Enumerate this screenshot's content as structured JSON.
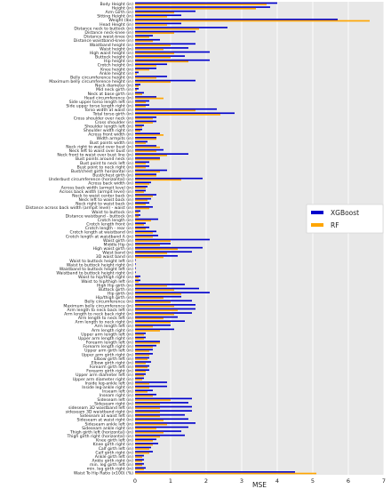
{
  "chart_data": {
    "type": "bar",
    "orientation": "horizontal",
    "xlabel": "MSE",
    "ylabel": "",
    "title": "",
    "xlim": [
      0,
      7
    ],
    "xticks": [
      0,
      1,
      2,
      3,
      4,
      5,
      6,
      7
    ],
    "grid": true,
    "legend_position": "right",
    "colors": {
      "XGBoost": "#0000cc",
      "RF": "#ffa500",
      "background": "#e8e8e8"
    },
    "categories": [
      "Body Height (in)",
      "Height (in)",
      "Arm Girth (in)",
      "Sitting Height (in)",
      "Weight (lbs)",
      "Head Height (in)",
      "Distance neck to buttock (in)",
      "Distance neck-knee (in)",
      "Distance waist-knee (in)",
      "Distance waistband-knee (in)",
      "Waistband height (in)",
      "Waist height (in)",
      "High waist height (in)",
      "Buttock height (in)",
      "Hip height (in)",
      "Crotch height (in)",
      "Knee height (in)",
      "Ankle height (in)",
      "Belly circumference height (in)",
      "Maximum belly circumference height (in)",
      "Neck diameter (in)",
      "Mid neck girth (in)",
      "Neck at base girth (in)",
      "Head circumference (in)",
      "Side upper torso length left (in)",
      "Side upper torso length right (in)",
      "Torso width at waist (in)",
      "Total torso girth (in)",
      "Cross shoulder over neck (in)",
      "Cross shoulder (in)",
      "Shoulder length left (in)",
      "Shoulder width right (in)",
      "Across front width (in)",
      "Width armpits (in)",
      "Bust points width (in)",
      "Neck right to waist over bust (in)",
      "Neck left to waist over bust (in)",
      "Neck front to waist over bust line (in)",
      "Bust points around neck (in)",
      "Bust point to neck left (in)",
      "Bust point to neck right (in)",
      "Bust/chest girth horizontal (in)",
      "Bust/chest girth (in)",
      "Underbust circumference (horizontal) (in)",
      "Across back width (in)",
      "Across back width (armpit level (in)",
      "Across back width (armpit level) (in)",
      "Neck to waist center back (in)",
      "Neck left to waist back (in)",
      "Neck right to waist back (in)",
      "Distance across back width (armpit level) - waist (in)",
      "Waist to buttock (in)",
      "Distance waistband - buttock (in)",
      "Crotch length (in)",
      "Crotch length front (in)",
      "Crotch length - rear (in)",
      "Crotch length at waistband (in)",
      "Crotch length at waistband A (in)",
      "Waist girth (in)",
      "Middle Hip (in)",
      "High waist girth (in)",
      "Waist band (in)",
      "3D waist band (in)",
      "Waist to buttock height left (in)",
      "Waist to buttock height right (in)",
      "Waistband to buttock height left (in)",
      "Waistband to buttock height right (in)",
      "Waist to hip/thigh right (in)",
      "Waist to hip/thigh left (in)",
      "High Hip girth (in)",
      "Buttock girth (in)",
      "Hip girth (in)",
      "Hip/thigh girth (in)",
      "Belly circumference (in)",
      "Maximum belly circumference (in)",
      "Arm length to neck back left (in)",
      "Arm length to neck back right (in)",
      "Arm length to neck left (in)",
      "Arm length to neck right (in)",
      "Arm length left (in)",
      "Arm length right (in)",
      "Upper arm length left (in)",
      "Upper arm length right (in)",
      "Forearm length left (in)",
      "Forearm length right (in)",
      "Upper arm girth left (in)",
      "Upper arm girth right (in)",
      "Elbow girth left (in)",
      "Elbow girth right (in)",
      "Forearm girth left (in)",
      "Forearm girth right (in)",
      "Upper arm diameter left (in)",
      "Upper arm diameter right (in)",
      "Inside leg-ankle left (in)",
      "Inside leg-ankle right (in)",
      "Inseam left (in)",
      "Inseam right (in)",
      "Sideseam left (in)",
      "Sideseam right (in)",
      "sideseam 3D waistband left (in)",
      "sideseam 3D waistband right (in)",
      "Sideseam at waist left (in)",
      "Sideseam at waist right (in)",
      "Sideseam ankle left (in)",
      "Sideseam ankle right (in)",
      "Thigh girth left (horizontal) (in)",
      "Thigh girth right (horizontal) (in)",
      "Knee girth left (in)",
      "Knee girth right (in)",
      "Calf girth left (in)",
      "Calf girth right (in)",
      "Ankle girth left (in)",
      "Ankle girth right (in)",
      "min. leg girth left (in)",
      "min. leg girth right (in)",
      "Waist To Hip Ratio (x100) (%)"
    ],
    "series": [
      {
        "name": "XGBoost",
        "values": [
          4.0,
          3.8,
          1.7,
          1.3,
          5.7,
          1.3,
          2.6,
          1.7,
          0.5,
          0.7,
          1.7,
          1.5,
          2.1,
          1.4,
          2.1,
          0.9,
          0.6,
          0.1,
          0.9,
          1.7,
          0.15,
          0.1,
          0.25,
          0.6,
          0.4,
          0.4,
          2.3,
          2.8,
          0.6,
          0.6,
          0.25,
          0.2,
          0.7,
          0.6,
          0.35,
          0.6,
          0.8,
          1.5,
          0.7,
          0.4,
          0.4,
          0.9,
          0.6,
          1.9,
          0.45,
          0.35,
          0.3,
          0.6,
          0.45,
          0.4,
          0.5,
          0.15,
          0.15,
          0.65,
          0.3,
          0.4,
          0.6,
          0.65,
          2.1,
          1.0,
          1.9,
          1.6,
          1.2,
          0.02,
          0.02,
          0.02,
          0.02,
          0.15,
          0.15,
          1.4,
          1.8,
          2.1,
          1.3,
          1.6,
          1.7,
          1.7,
          1.6,
          1.2,
          1.4,
          1.0,
          1.1,
          0.3,
          0.3,
          0.7,
          0.6,
          0.5,
          0.5,
          0.4,
          0.45,
          0.4,
          0.4,
          0.3,
          0.25,
          0.9,
          0.9,
          0.5,
          0.6,
          1.6,
          1.5,
          1.6,
          1.6,
          1.4,
          1.5,
          1.7,
          1.5,
          1.3,
          1.4,
          0.6,
          0.65,
          0.45,
          0.5,
          0.25,
          0.25,
          0.25,
          0.3,
          4.5
        ]
      },
      {
        "name": "RF",
        "values": [
          3.7,
          3.4,
          1.1,
          0.9,
          6.6,
          0.9,
          1.8,
          1.1,
          0.4,
          0.5,
          1.0,
          0.8,
          1.1,
          1.0,
          1.5,
          0.6,
          0.4,
          0.05,
          0.6,
          1.0,
          0.1,
          0.05,
          0.2,
          0.8,
          0.3,
          0.3,
          1.7,
          2.4,
          0.5,
          0.5,
          0.2,
          0.15,
          0.8,
          0.6,
          0.3,
          0.7,
          0.6,
          0.9,
          0.7,
          0.3,
          0.3,
          0.7,
          0.6,
          1.3,
          0.4,
          0.3,
          0.25,
          0.5,
          0.35,
          0.3,
          0.4,
          0.1,
          0.1,
          0.45,
          0.25,
          0.3,
          0.5,
          0.5,
          1.0,
          0.7,
          1.2,
          0.9,
          0.8,
          0.01,
          0.01,
          0.01,
          0.01,
          0.1,
          0.1,
          0.9,
          1.1,
          1.3,
          0.8,
          1.0,
          1.1,
          1.2,
          1.1,
          0.8,
          1.0,
          0.5,
          0.7,
          0.25,
          0.25,
          0.7,
          0.5,
          0.4,
          0.4,
          0.35,
          0.3,
          0.35,
          0.3,
          0.25,
          0.2,
          0.4,
          0.4,
          0.35,
          0.5,
          1.0,
          0.7,
          0.7,
          0.7,
          0.7,
          0.8,
          0.9,
          0.6,
          0.8,
          0.7,
          0.5,
          0.5,
          0.4,
          0.4,
          0.2,
          0.2,
          0.2,
          0.25,
          5.1
        ]
      }
    ]
  }
}
